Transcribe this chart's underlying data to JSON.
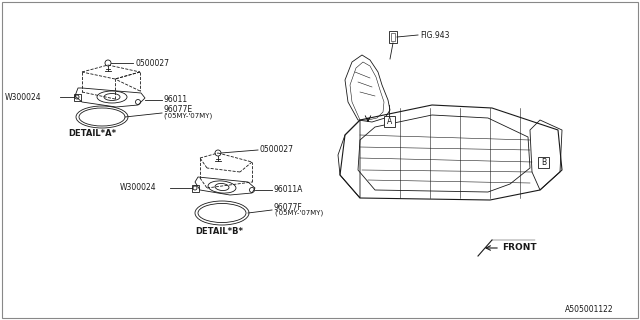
{
  "bg_color": "#ffffff",
  "border_color": "#000000",
  "line_color": "#1a1a1a",
  "text_color": "#1a1a1a",
  "fig_width": 6.4,
  "fig_height": 3.2,
  "dpi": 100,
  "footer_text": "A505001122",
  "labels": {
    "detail_a": "DETAIL*A*",
    "detail_b": "DETAIL*B*",
    "fig943": "FIG.943",
    "front": "FRONT",
    "part_0500027_a": "0500027",
    "part_0500027_b": "0500027",
    "part_w300024_a": "W300024",
    "part_w300024_b": "W300024",
    "part_96011": "96011",
    "part_96011a": "96011A",
    "part_96077e": "96077E",
    "part_96077e_sub": "('05MY-'07MY)",
    "part_96077f": "96077F",
    "part_96077f_sub": "('05MY-'07MY)"
  }
}
